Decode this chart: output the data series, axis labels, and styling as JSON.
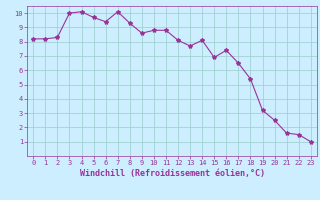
{
  "x": [
    0,
    1,
    2,
    3,
    4,
    5,
    6,
    7,
    8,
    9,
    10,
    11,
    12,
    13,
    14,
    15,
    16,
    17,
    18,
    19,
    20,
    21,
    22,
    23
  ],
  "y": [
    8.2,
    8.2,
    8.3,
    10.0,
    10.1,
    9.7,
    9.4,
    10.1,
    9.3,
    8.6,
    8.8,
    8.8,
    8.1,
    7.7,
    8.1,
    6.9,
    7.4,
    6.5,
    5.4,
    3.2,
    2.5,
    1.6,
    1.5,
    1.0
  ],
  "line_color": "#993399",
  "marker": "*",
  "marker_size": 3,
  "bg_color": "#cceeff",
  "grid_color": "#99cccc",
  "xlabel": "Windchill (Refroidissement éolien,°C)",
  "xlabel_color": "#993399",
  "tick_color": "#993399",
  "ylim": [
    0,
    10.5
  ],
  "xlim": [
    -0.5,
    23.5
  ],
  "yticks": [
    1,
    2,
    3,
    4,
    5,
    6,
    7,
    8,
    9,
    10
  ],
  "xticks": [
    0,
    1,
    2,
    3,
    4,
    5,
    6,
    7,
    8,
    9,
    10,
    11,
    12,
    13,
    14,
    15,
    16,
    17,
    18,
    19,
    20,
    21,
    22,
    23
  ],
  "tick_fontsize": 5.0,
  "xlabel_fontsize": 6.0,
  "line_width": 0.8
}
